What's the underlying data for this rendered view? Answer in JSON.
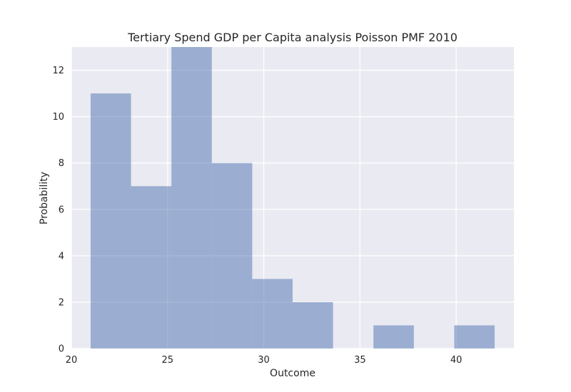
{
  "chart_data": {
    "type": "bar",
    "title": "Tertiary Spend GDP per Capita analysis Poisson PMF 2010",
    "xlabel": "Outcome",
    "ylabel": "Probability",
    "xlim": [
      20.0,
      43.0
    ],
    "ylim": [
      0,
      13.0
    ],
    "xticks": [
      20,
      25,
      30,
      35,
      40
    ],
    "yticks": [
      0,
      2,
      4,
      6,
      8,
      10,
      12
    ],
    "grid": true,
    "bin_edges": [
      21.0,
      23.1,
      25.2,
      27.3,
      29.4,
      31.5,
      33.6,
      35.7,
      37.8,
      39.9,
      42.0
    ],
    "values": [
      11,
      7,
      13,
      8,
      3,
      2,
      0,
      1,
      0,
      1
    ],
    "colors": {
      "background": "#eaeaf2",
      "grid": "#ffffff",
      "bar": "#4c72b0",
      "bar_opacity": 0.5,
      "text": "#262626"
    }
  }
}
